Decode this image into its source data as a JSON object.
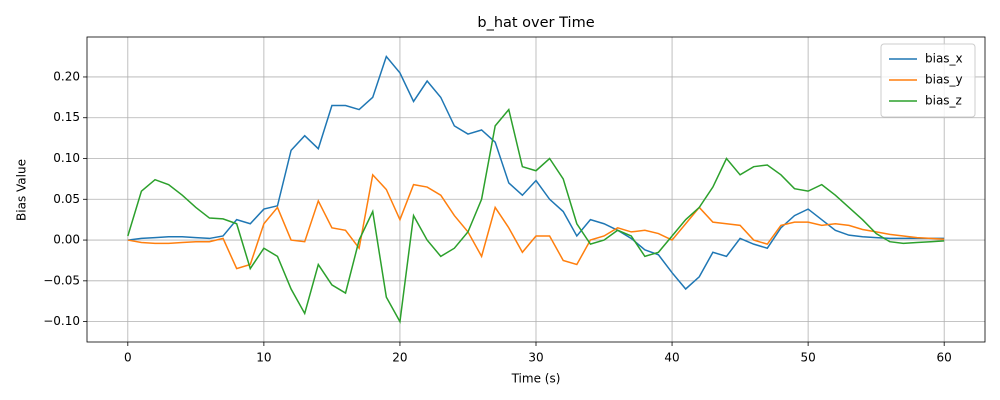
{
  "chart_data": {
    "type": "line",
    "title": "b_hat over Time",
    "x_label": "Time (s)",
    "y_label": "Bias Value",
    "x": [
      0,
      1,
      2,
      3,
      4,
      5,
      6,
      7,
      8,
      9,
      10,
      11,
      12,
      13,
      14,
      15,
      16,
      17,
      18,
      19,
      20,
      21,
      22,
      23,
      24,
      25,
      26,
      27,
      28,
      29,
      30,
      31,
      32,
      33,
      34,
      35,
      36,
      37,
      38,
      39,
      40,
      41,
      42,
      43,
      44,
      45,
      46,
      47,
      48,
      49,
      50,
      51,
      52,
      53,
      54,
      55,
      56,
      57,
      58,
      59,
      60
    ],
    "series": [
      {
        "name": "bias_x",
        "color": "#1f77b4",
        "values": [
          0.0,
          0.002,
          0.003,
          0.004,
          0.004,
          0.003,
          0.002,
          0.005,
          0.025,
          0.02,
          0.038,
          0.042,
          0.11,
          0.128,
          0.112,
          0.165,
          0.165,
          0.16,
          0.175,
          0.225,
          0.205,
          0.17,
          0.195,
          0.175,
          0.14,
          0.13,
          0.135,
          0.12,
          0.07,
          0.055,
          0.073,
          0.05,
          0.035,
          0.005,
          0.025,
          0.02,
          0.012,
          0.002,
          -0.012,
          -0.018,
          -0.04,
          -0.06,
          -0.045,
          -0.015,
          -0.02,
          0.002,
          -0.005,
          -0.01,
          0.015,
          0.03,
          0.038,
          0.025,
          0.012,
          0.006,
          0.004,
          0.003,
          0.002,
          0.002,
          0.002,
          0.002,
          0.002
        ]
      },
      {
        "name": "bias_y",
        "color": "#ff7f0e",
        "values": [
          0.0,
          -0.003,
          -0.004,
          -0.004,
          -0.003,
          -0.002,
          -0.002,
          0.002,
          -0.035,
          -0.03,
          0.02,
          0.04,
          0.0,
          -0.002,
          0.048,
          0.015,
          0.012,
          -0.01,
          0.08,
          0.062,
          0.025,
          0.068,
          0.065,
          0.055,
          0.03,
          0.01,
          -0.02,
          0.04,
          0.015,
          -0.015,
          0.005,
          0.005,
          -0.025,
          -0.03,
          0.0,
          0.005,
          0.015,
          0.01,
          0.012,
          0.008,
          0.0,
          0.02,
          0.04,
          0.022,
          0.02,
          0.018,
          0.0,
          -0.005,
          0.018,
          0.022,
          0.022,
          0.018,
          0.02,
          0.018,
          0.013,
          0.01,
          0.007,
          0.005,
          0.003,
          0.002,
          0.001
        ]
      },
      {
        "name": "bias_z",
        "color": "#2ca02c",
        "values": [
          0.005,
          0.06,
          0.074,
          0.068,
          0.055,
          0.04,
          0.027,
          0.026,
          0.02,
          -0.035,
          -0.01,
          -0.02,
          -0.06,
          -0.09,
          -0.03,
          -0.055,
          -0.065,
          0.0,
          0.035,
          -0.07,
          -0.1,
          0.03,
          0.0,
          -0.02,
          -0.01,
          0.01,
          0.05,
          0.14,
          0.16,
          0.09,
          0.085,
          0.1,
          0.075,
          0.02,
          -0.005,
          0.0,
          0.012,
          0.005,
          -0.02,
          -0.015,
          0.005,
          0.025,
          0.04,
          0.065,
          0.1,
          0.08,
          0.09,
          0.092,
          0.08,
          0.063,
          0.06,
          0.068,
          0.055,
          0.04,
          0.025,
          0.008,
          -0.002,
          -0.004,
          -0.003,
          -0.002,
          -0.001
        ]
      }
    ],
    "xlim": [
      -3,
      63
    ],
    "xticks": [
      0,
      10,
      20,
      30,
      40,
      50,
      60
    ],
    "ylim": [
      -0.125,
      0.249
    ],
    "yticks": [
      {
        "value": -0.1,
        "label": "−0.10"
      },
      {
        "value": -0.05,
        "label": "−0.05"
      },
      {
        "value": 0,
        "label": "0.00"
      },
      {
        "value": 0.05,
        "label": "0.05"
      },
      {
        "value": 0.1,
        "label": "0.10"
      },
      {
        "value": 0.15,
        "label": "0.15"
      },
      {
        "value": 0.2,
        "label": "0.20"
      }
    ],
    "grid": true,
    "legend": "upper right"
  }
}
